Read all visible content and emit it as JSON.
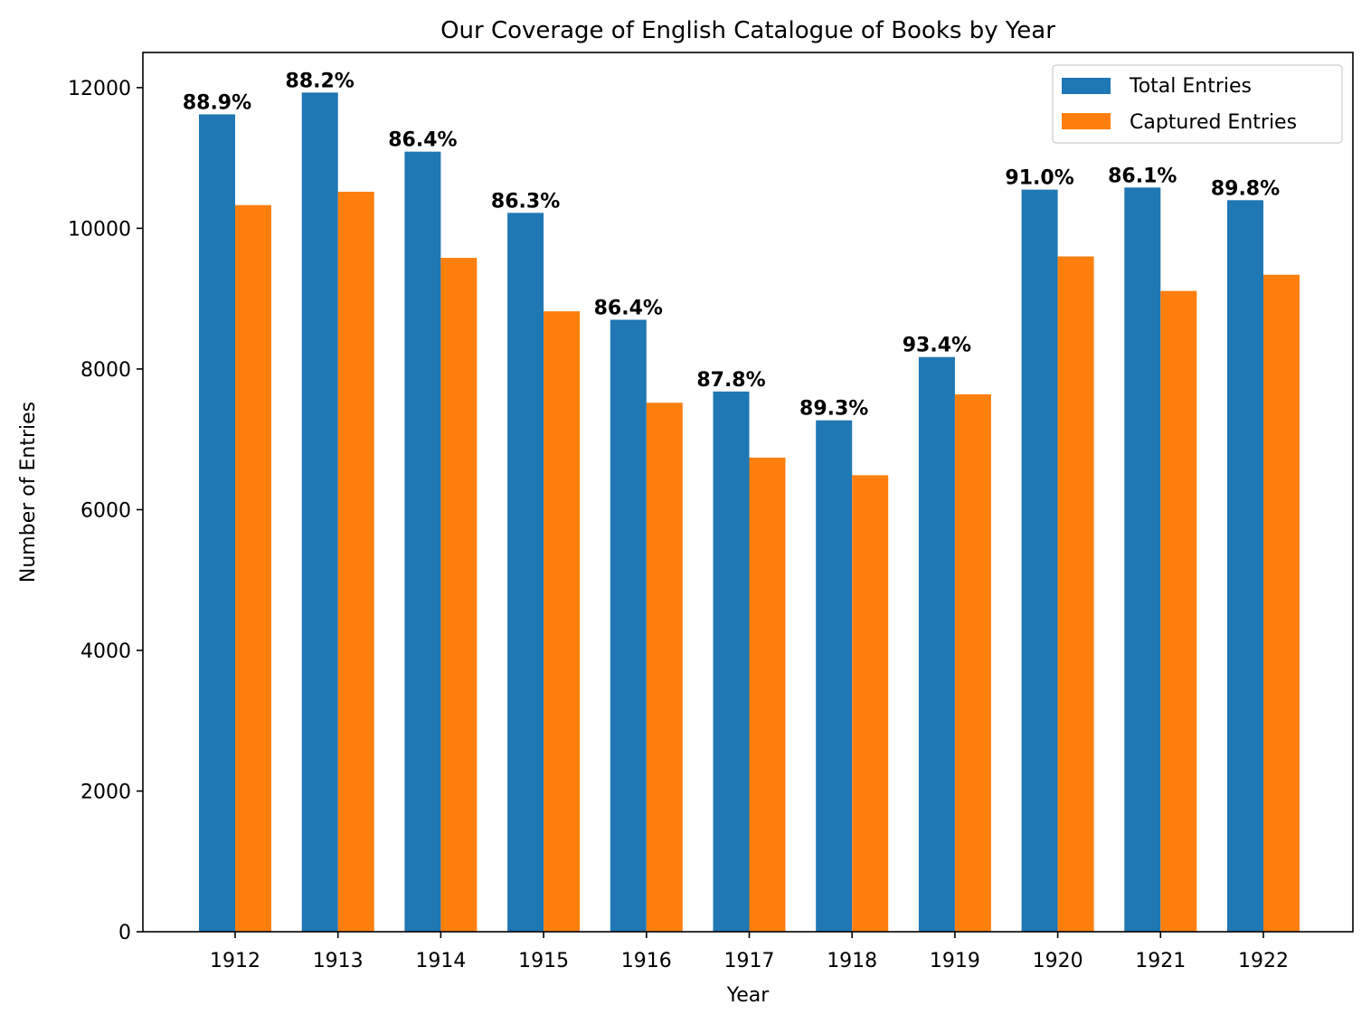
{
  "chart_data": {
    "type": "bar",
    "title": "Our Coverage of English Catalogue of Books by Year",
    "xlabel": "Year",
    "ylabel": "Number of Entries",
    "categories": [
      "1912",
      "1913",
      "1914",
      "1915",
      "1916",
      "1917",
      "1918",
      "1919",
      "1920",
      "1921",
      "1922"
    ],
    "series": [
      {
        "name": "Total Entries",
        "color": "#1f77b4",
        "values": [
          11620,
          11930,
          11090,
          10220,
          8700,
          7680,
          7270,
          8170,
          10550,
          10580,
          10400
        ]
      },
      {
        "name": "Captured Entries",
        "color": "#ff7f0e",
        "values": [
          10330,
          10520,
          9580,
          8820,
          7520,
          6740,
          6490,
          7640,
          9600,
          9110,
          9340
        ]
      }
    ],
    "data_labels": [
      "88.9%",
      "88.2%",
      "86.4%",
      "86.3%",
      "86.4%",
      "87.8%",
      "89.3%",
      "93.4%",
      "91.0%",
      "86.1%",
      "89.8%"
    ],
    "ylim": [
      0,
      12500
    ],
    "yticks": [
      "0",
      "2000",
      "4000",
      "6000",
      "8000",
      "10000",
      "12000"
    ],
    "grid": false,
    "legend_position": "top-right"
  }
}
